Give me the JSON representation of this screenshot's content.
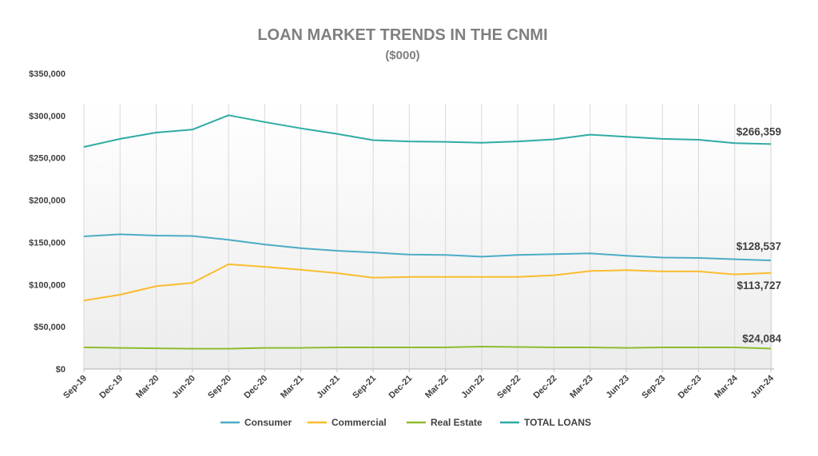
{
  "chart_data": {
    "type": "line",
    "title": "LOAN MARKET TRENDS IN THE CNMI",
    "subtitle": "($000)",
    "xlabel": "",
    "ylabel": "",
    "ylim": [
      0,
      350000
    ],
    "y_ticks": [
      0,
      50000,
      100000,
      150000,
      200000,
      250000,
      300000,
      350000
    ],
    "y_tick_labels": [
      "$0",
      "$50,000",
      "$100,000",
      "$150,000",
      "$200,000",
      "$250,000",
      "$300,000",
      "$350,000"
    ],
    "grid": "vertical",
    "legend_position": "bottom",
    "categories": [
      "Sep-19",
      "Dec-19",
      "Mar-20",
      "Jun-20",
      "Sep-20",
      "Dec-20",
      "Mar-21",
      "Jun-21",
      "Sep-21",
      "Dec-21",
      "Mar-22",
      "Jun-22",
      "Sep-22",
      "Dec-22",
      "Mar-23",
      "Jun-23",
      "Sep-23",
      "Dec-23",
      "Mar-24",
      "Jun-24"
    ],
    "series": [
      {
        "name": "Consumer",
        "color": "#4bacc6",
        "values": [
          157000,
          159500,
          158000,
          157500,
          153000,
          147500,
          143000,
          140000,
          138000,
          135500,
          135000,
          133000,
          135000,
          136000,
          137000,
          134000,
          132000,
          131500,
          130000,
          128537
        ],
        "end_label": "$128,537"
      },
      {
        "name": "Commercial",
        "color": "#fbbc2e",
        "values": [
          81000,
          88000,
          98000,
          102000,
          124000,
          121000,
          117500,
          113500,
          108000,
          109000,
          109000,
          109000,
          109000,
          111000,
          116000,
          117000,
          115500,
          115500,
          112000,
          113727
        ],
        "end_label": "$113,727"
      },
      {
        "name": "Real Estate",
        "color": "#8fbc2f",
        "values": [
          25500,
          25000,
          24500,
          24000,
          24000,
          25000,
          25000,
          25500,
          25500,
          25500,
          25500,
          26500,
          26000,
          25500,
          25500,
          25000,
          25500,
          25500,
          25500,
          24084
        ],
        "end_label": "$24,084"
      },
      {
        "name": "TOTAL LOANS",
        "color": "#2eaba4",
        "values": [
          263000,
          272500,
          280000,
          283500,
          300500,
          292500,
          285000,
          278500,
          271000,
          269500,
          269000,
          268000,
          269500,
          272000,
          277500,
          275000,
          272500,
          271500,
          267500,
          266359
        ],
        "end_label": "$266,359"
      }
    ]
  }
}
